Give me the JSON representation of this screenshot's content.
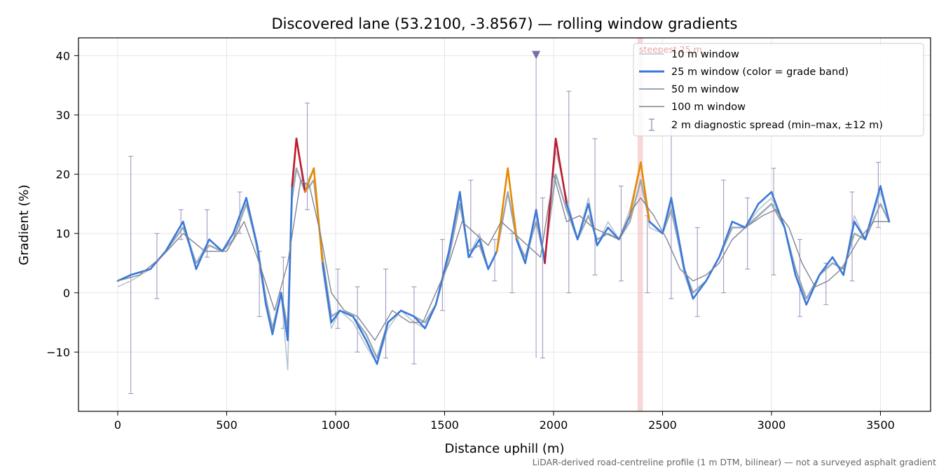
{
  "chart_data": {
    "type": "line",
    "title": "Discovered lane (53.2100, -3.8567) — rolling window gradients",
    "xlabel": "Distance uphill (m)",
    "ylabel": "Gradient (%)",
    "xlim": [
      -180,
      3730
    ],
    "ylim": [
      -20,
      43
    ],
    "xticks": [
      0,
      500,
      1000,
      1500,
      2000,
      2500,
      3000,
      3500
    ],
    "yticks": [
      -10,
      0,
      10,
      20,
      30,
      40
    ],
    "grid": true,
    "legend_position": "top-right",
    "footnote": "LiDAR-derived road-centreline profile (1 m DTM, bilinear) — not a surveyed asphalt gradient",
    "colors": {
      "w10": "#b8c4cf",
      "w25": "#3a78d8",
      "w50": "#9aa7b6",
      "w100": "#7d8594",
      "spread": "#8a80b0",
      "steep_band": "#f1b7b7",
      "grade_orange": "#e68a00",
      "grade_red": "#c0182b",
      "marker": "#7a6ea6"
    },
    "steepest_segment": {
      "label": "steepest 25 m",
      "x_start": 2385,
      "x_end": 2410
    },
    "marker_x": 1920,
    "grade_bands": [
      {
        "min": 0,
        "max": 20,
        "color": "#3a78d8"
      },
      {
        "min": 20,
        "max": 25,
        "color": "#e68a00"
      },
      {
        "min": 25,
        "max": 100,
        "color": "#c0182b"
      }
    ],
    "series": [
      {
        "name": "10 m window",
        "x": [
          0,
          60,
          150,
          220,
          300,
          360,
          420,
          480,
          530,
          590,
          640,
          680,
          710,
          750,
          780,
          800,
          820,
          860,
          900,
          940,
          980,
          1020,
          1080,
          1140,
          1190,
          1240,
          1300,
          1360,
          1410,
          1460,
          1520,
          1570,
          1610,
          1660,
          1700,
          1740,
          1790,
          1830,
          1870,
          1920,
          1960,
          2010,
          2060,
          2110,
          2160,
          2200,
          2250,
          2300,
          2350,
          2400,
          2440,
          2500,
          2540,
          2600,
          2640,
          2700,
          2760,
          2820,
          2880,
          2940,
          3000,
          3060,
          3110,
          3160,
          3220,
          3280,
          3330,
          3380,
          3430,
          3500,
          3540
        ],
        "values": [
          1,
          2,
          4,
          7,
          12,
          5,
          9,
          7,
          10,
          16,
          7,
          -2,
          -7,
          0,
          -13,
          16,
          26,
          18,
          21,
          4,
          -6,
          -3,
          -5,
          -9,
          -12,
          -6,
          -3,
          -5,
          -6,
          -2,
          7,
          16,
          6,
          10,
          4,
          7,
          21,
          10,
          5,
          12,
          5,
          24,
          16,
          9,
          16,
          8,
          12,
          9,
          14,
          22,
          11,
          10,
          15,
          3,
          -1,
          2,
          6,
          12,
          11,
          14,
          16,
          11,
          3,
          -1,
          3,
          6,
          3,
          13,
          9,
          17,
          12
        ]
      },
      {
        "name": "25 m window (color = grade band)",
        "x": [
          0,
          60,
          150,
          220,
          300,
          360,
          420,
          480,
          530,
          590,
          640,
          680,
          710,
          750,
          780,
          800,
          820,
          860,
          900,
          940,
          980,
          1020,
          1080,
          1140,
          1190,
          1240,
          1300,
          1360,
          1410,
          1460,
          1520,
          1570,
          1610,
          1660,
          1700,
          1740,
          1790,
          1830,
          1870,
          1920,
          1960,
          2010,
          2060,
          2110,
          2160,
          2200,
          2250,
          2300,
          2350,
          2400,
          2440,
          2500,
          2540,
          2600,
          2640,
          2700,
          2760,
          2820,
          2880,
          2940,
          3000,
          3060,
          3110,
          3160,
          3220,
          3280,
          3330,
          3380,
          3430,
          3500,
          3540
        ],
        "values": [
          2,
          3,
          4,
          7,
          12,
          4,
          9,
          7,
          10,
          16,
          8,
          -2,
          -7,
          0,
          -8,
          18,
          26,
          17,
          21,
          5,
          -5,
          -3,
          -4,
          -8,
          -12,
          -5,
          -3,
          -4,
          -6,
          -2,
          7,
          17,
          6,
          9,
          4,
          7,
          21,
          9,
          5,
          14,
          5,
          26,
          15,
          9,
          15,
          8,
          11,
          9,
          13,
          22,
          12,
          10,
          16,
          4,
          -1,
          2,
          6,
          12,
          11,
          15,
          17,
          11,
          3,
          -2,
          3,
          6,
          3,
          12,
          9,
          18,
          12
        ]
      },
      {
        "name": "50 m window",
        "x": [
          0,
          60,
          150,
          220,
          300,
          360,
          420,
          480,
          530,
          590,
          640,
          680,
          710,
          750,
          780,
          800,
          820,
          860,
          900,
          940,
          980,
          1020,
          1080,
          1140,
          1190,
          1240,
          1300,
          1360,
          1410,
          1460,
          1520,
          1570,
          1610,
          1660,
          1700,
          1740,
          1790,
          1830,
          1870,
          1920,
          1960,
          2010,
          2060,
          2110,
          2160,
          2200,
          2250,
          2300,
          2350,
          2400,
          2440,
          2500,
          2540,
          2600,
          2640,
          2700,
          2760,
          2820,
          2880,
          2940,
          3000,
          3060,
          3110,
          3160,
          3220,
          3280,
          3330,
          3380,
          3430,
          3500,
          3540
        ],
        "values": [
          2,
          3,
          4,
          7,
          11,
          5,
          8,
          7,
          9,
          15,
          8,
          -1,
          -6,
          0,
          -6,
          16,
          21,
          17,
          19,
          6,
          -4,
          -3,
          -4,
          -7,
          -11,
          -5,
          -3,
          -4,
          -5,
          -2,
          6,
          15,
          7,
          8,
          4,
          7,
          17,
          9,
          6,
          12,
          6,
          20,
          14,
          9,
          13,
          9,
          10,
          9,
          12,
          19,
          12,
          10,
          14,
          4,
          0,
          2,
          6,
          11,
          11,
          13,
          15,
          11,
          4,
          -1,
          3,
          5,
          4,
          10,
          9,
          15,
          12
        ]
      },
      {
        "name": "100 m window",
        "x": [
          0,
          100,
          200,
          300,
          400,
          500,
          580,
          650,
          720,
          780,
          840,
          880,
          930,
          980,
          1040,
          1100,
          1180,
          1260,
          1340,
          1400,
          1460,
          1520,
          1580,
          1640,
          1700,
          1760,
          1820,
          1880,
          1940,
          2000,
          2060,
          2120,
          2180,
          2240,
          2300,
          2360,
          2400,
          2460,
          2520,
          2580,
          2640,
          2700,
          2760,
          2820,
          2880,
          2960,
          3020,
          3080,
          3140,
          3200,
          3260,
          3320,
          3400,
          3470,
          3540
        ],
        "values": [
          2,
          3,
          6,
          10,
          7,
          7,
          12,
          5,
          -3,
          5,
          19,
          18,
          10,
          0,
          -3,
          -4,
          -8,
          -3,
          -5,
          -5,
          0,
          5,
          12,
          10,
          8,
          12,
          10,
          8,
          6,
          20,
          12,
          13,
          11,
          10,
          9,
          14,
          16,
          13,
          9,
          4,
          2,
          3,
          5,
          9,
          11,
          13,
          14,
          11,
          5,
          1,
          2,
          4,
          9,
          12,
          12
        ]
      },
      {
        "name": "2 m diagnostic spread (min–max, ±12 m)",
        "type": "errorbar",
        "x": [
          60,
          180,
          290,
          410,
          560,
          650,
          760,
          870,
          1010,
          1100,
          1230,
          1360,
          1490,
          1620,
          1730,
          1810,
          1950,
          2070,
          2190,
          2310,
          2430,
          2540,
          2660,
          2780,
          2890,
          3010,
          3130,
          3250,
          3370,
          3490
        ],
        "low": [
          -17,
          -1,
          9,
          6,
          10,
          -4,
          -6,
          14,
          -6,
          -10,
          -11,
          -12,
          -3,
          6,
          2,
          0,
          -11,
          0,
          3,
          2,
          0,
          -1,
          -4,
          0,
          4,
          3,
          -4,
          -2,
          2,
          11
        ],
        "high": [
          23,
          10,
          14,
          14,
          17,
          7,
          6,
          32,
          4,
          1,
          4,
          1,
          9,
          19,
          9,
          10,
          16,
          34,
          26,
          18,
          13,
          28,
          11,
          19,
          16,
          21,
          9,
          5,
          17,
          22
        ]
      }
    ]
  }
}
